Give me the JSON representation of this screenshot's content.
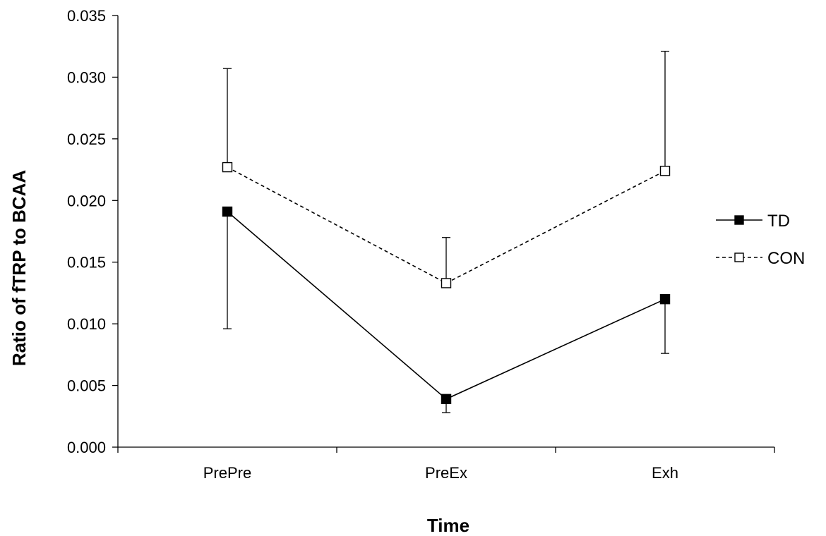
{
  "chart_data": {
    "type": "line",
    "xlabel": "Time",
    "ylabel": "Ratio of fTRP to BCAA",
    "categories": [
      "PrePre",
      "PreEx",
      "Exh"
    ],
    "ylim": [
      0.0,
      0.035
    ],
    "yticks": [
      "0.000",
      "0.005",
      "0.010",
      "0.015",
      "0.020",
      "0.025",
      "0.030",
      "0.035"
    ],
    "grid": false,
    "legend_position": "right",
    "series": [
      {
        "name": "TD",
        "values": [
          0.0191,
          0.0039,
          0.012
        ],
        "error_lower": [
          0.0095,
          0.0011,
          0.0044
        ],
        "error_upper": [
          0,
          0,
          0
        ],
        "line_style": "solid",
        "marker": "filled-square",
        "color": "#000000"
      },
      {
        "name": "CON",
        "values": [
          0.0227,
          0.0133,
          0.0224
        ],
        "error_lower": [
          0,
          0,
          0
        ],
        "error_upper": [
          0.008,
          0.0037,
          0.0097
        ],
        "line_style": "dashed",
        "marker": "open-square",
        "color": "#000000"
      }
    ]
  }
}
